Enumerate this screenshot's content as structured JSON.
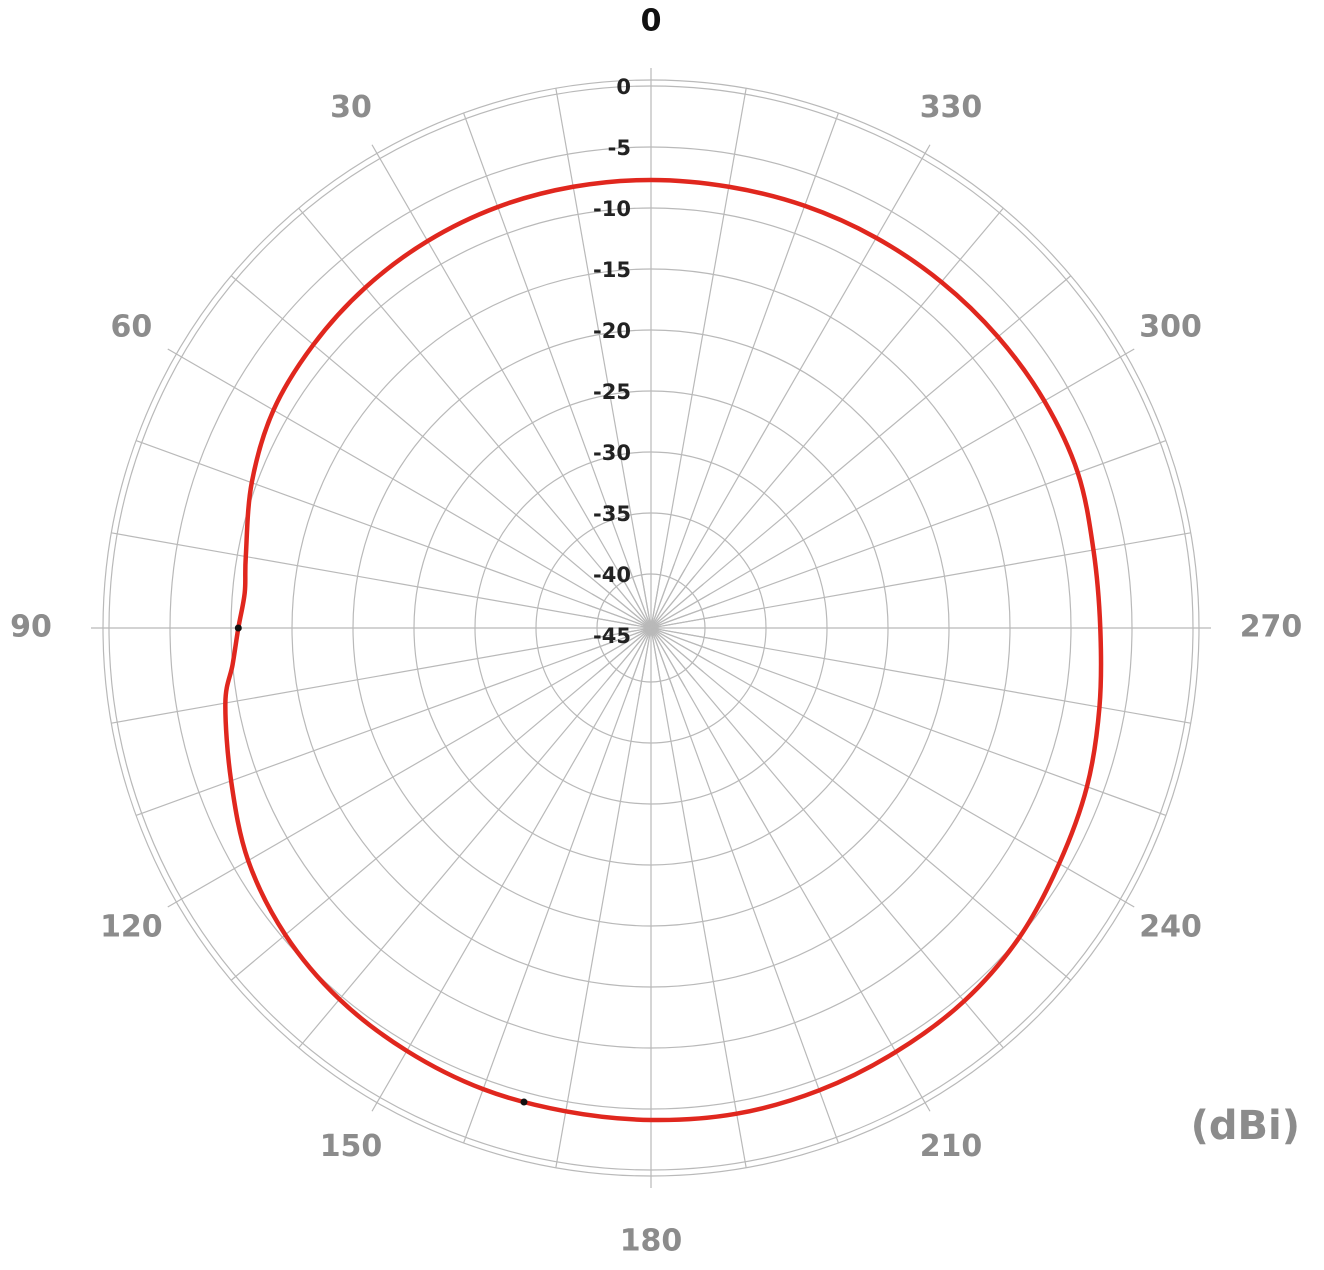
{
  "chart_data": {
    "type": "polar-line",
    "unit": "(dBi)",
    "angular_ticks": [
      "0",
      "30",
      "60",
      "90",
      "120",
      "150",
      "180",
      "210",
      "240",
      "270",
      "300",
      "330"
    ],
    "angular_tick_values": [
      0,
      30,
      60,
      90,
      120,
      150,
      180,
      210,
      240,
      270,
      300,
      330
    ],
    "angular_direction": "counterclockwise",
    "zero_location": "top",
    "radial_ticks": [
      "0",
      "-5",
      "-10",
      "-15",
      "-20",
      "-25",
      "-30",
      "-35",
      "-40",
      "-45"
    ],
    "radial_range": [
      -50,
      0
    ],
    "grid": true,
    "spoke_step_deg": 10,
    "series": [
      {
        "color": "#e0271e",
        "theta_deg": [
          0,
          10,
          20,
          30,
          40,
          50,
          60,
          70,
          80,
          85,
          90,
          95,
          100,
          110,
          120,
          130,
          140,
          150,
          160,
          170,
          180,
          190,
          200,
          210,
          220,
          230,
          240,
          250,
          260,
          270,
          280,
          290,
          300,
          310,
          320,
          330,
          340,
          350
        ],
        "gain_dbi": [
          -7.7,
          -7.7,
          -7.7,
          -7.8,
          -8.0,
          -8.3,
          -8.7,
          -9.6,
          -10.7,
          -11.0,
          -10.6,
          -10.0,
          -9.0,
          -7.8,
          -6.3,
          -5.3,
          -4.7,
          -4.4,
          -4.2,
          -4.2,
          -4.1,
          -4.0,
          -4.1,
          -4.3,
          -4.5,
          -5.0,
          -5.8,
          -6.4,
          -7.1,
          -7.6,
          -7.6,
          -7.2,
          -7.2,
          -7.3,
          -7.4,
          -7.5,
          -7.6,
          -7.7
        ]
      }
    ],
    "markers": [
      {
        "theta_deg": 90,
        "gain_dbi": -10.6
      },
      {
        "theta_deg": 165,
        "gain_dbi": -4.2
      }
    ]
  }
}
